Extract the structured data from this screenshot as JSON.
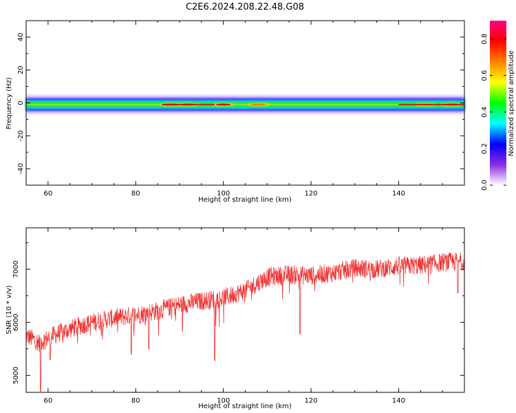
{
  "title": "C2E6.2024.208.22.48.G08",
  "chart_data": [
    {
      "type": "heatmap",
      "xlabel": "Height of straight line (km)",
      "ylabel": "Frequency (Hz)",
      "xlim": [
        55,
        155
      ],
      "ylim": [
        -50,
        50
      ],
      "xticks": [
        60,
        80,
        100,
        120,
        140
      ],
      "yticks": [
        -40,
        -20,
        0,
        20,
        40
      ],
      "ytick_labels": [
        "-40",
        "-20",
        "0",
        "20",
        "40"
      ],
      "band_center_hz": -1,
      "band_halfwidth_hz": 4,
      "hotspots": [
        {
          "km": 88,
          "amp": 0.85
        },
        {
          "km": 92,
          "amp": 0.9
        },
        {
          "km": 100,
          "amp": 0.85
        },
        {
          "km": 108,
          "amp": 0.75
        },
        {
          "km": 146,
          "amp": 0.8
        },
        {
          "km": 152,
          "amp": 0.9
        }
      ],
      "colorbar": {
        "label": "Normalized spectral amplitude",
        "ticks": [
          0.0,
          0.2,
          0.4,
          0.6,
          0.8
        ],
        "tick_labels": [
          "0.0",
          "0.2",
          "0.4",
          "0.6",
          "0.8"
        ],
        "range": [
          0,
          0.9
        ],
        "colors": [
          "#ffffff",
          "#8a2be2",
          "#0000ff",
          "#00ffff",
          "#00ff00",
          "#ffff00",
          "#ff8000",
          "#ff0000",
          "#ff0080"
        ]
      }
    },
    {
      "type": "line",
      "xlabel": "Height of straight line (km)",
      "ylabel": "SNR (10 * v/v)",
      "xlim": [
        55,
        155
      ],
      "ylim": [
        4680,
        7780
      ],
      "xticks": [
        60,
        80,
        100,
        120,
        140
      ],
      "yticks": [
        5000,
        6000,
        7000
      ],
      "color": "#ee3333",
      "series": [
        {
          "values_x": [
            55,
            58,
            62,
            66,
            70,
            75,
            80,
            85,
            90,
            95,
            100,
            105,
            110,
            115,
            120,
            125,
            130,
            135,
            140,
            145,
            150,
            155
          ],
          "values_y": [
            5750,
            5620,
            5780,
            5900,
            6000,
            6080,
            6140,
            6220,
            6330,
            6400,
            6460,
            6600,
            6850,
            6900,
            6880,
            6930,
            7020,
            7000,
            7060,
            7070,
            7130,
            7150
          ]
        }
      ],
      "dips": [
        {
          "x": 58.3,
          "y": 4700
        },
        {
          "x": 60.5,
          "y": 5300
        },
        {
          "x": 79,
          "y": 5400
        },
        {
          "x": 83,
          "y": 5500
        },
        {
          "x": 98,
          "y": 5280
        },
        {
          "x": 117.5,
          "y": 5780
        },
        {
          "x": 153.5,
          "y": 6550
        }
      ]
    }
  ]
}
